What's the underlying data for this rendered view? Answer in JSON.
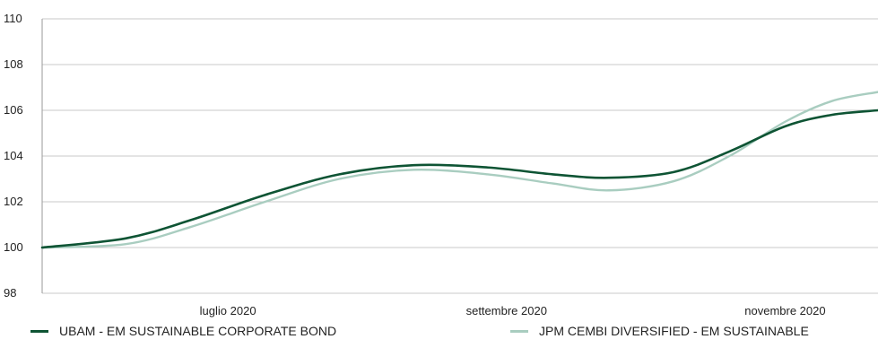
{
  "chart_data": {
    "type": "line",
    "title": "",
    "xlabel": "",
    "ylabel": "",
    "x_tick_labels": [
      "luglio 2020",
      "settembre 2020",
      "novembre 2020"
    ],
    "ylim": [
      98,
      110
    ],
    "y_ticks": [
      98,
      100,
      102,
      104,
      106,
      108,
      110
    ],
    "grid": "horizontal",
    "legend_position": "bottom",
    "x_domain": [
      0,
      9
    ],
    "x_ticks": [
      2,
      5,
      8
    ],
    "series": [
      {
        "name": "UBAM - EM SUSTAINABLE CORPORATE BOND",
        "color": "#0e5434",
        "x": [
          0,
          0.9,
          1.6,
          2.4,
          3.2,
          4.0,
          4.8,
          5.5,
          6.1,
          6.8,
          7.4,
          8.0,
          8.5,
          9.0
        ],
        "values": [
          100,
          100.4,
          101.2,
          102.3,
          103.2,
          103.6,
          103.5,
          103.2,
          103.05,
          103.3,
          104.2,
          105.3,
          105.8,
          106.0
        ]
      },
      {
        "name": "JPM CEMBI DIVERSIFIED - EM SUSTAINABLE",
        "color": "#a9cdc0",
        "x": [
          0,
          0.9,
          1.6,
          2.4,
          3.2,
          4.0,
          4.8,
          5.5,
          6.1,
          6.8,
          7.4,
          8.0,
          8.5,
          9.0
        ],
        "values": [
          100,
          100.15,
          100.9,
          102.0,
          103.0,
          103.4,
          103.2,
          102.8,
          102.5,
          102.9,
          104.0,
          105.5,
          106.4,
          106.8
        ]
      }
    ]
  }
}
